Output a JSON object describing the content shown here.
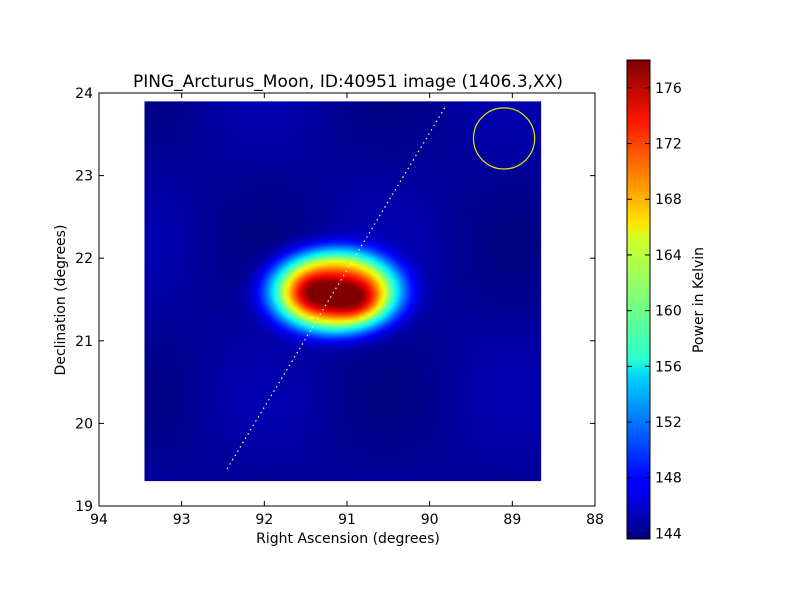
{
  "chart_data": {
    "type": "heatmap",
    "title": "PING_Arcturus_Moon, ID:40951 image (1406.3,XX)",
    "xlabel": "Right Ascension (degrees)",
    "ylabel": "Declination (degrees)",
    "xlim": [
      94,
      88
    ],
    "ylim": [
      19,
      24
    ],
    "x_ticks": [
      94,
      93,
      92,
      91,
      90,
      89,
      88
    ],
    "y_ticks": [
      19,
      20,
      21,
      22,
      23,
      24
    ],
    "x_tick_labels": [
      "94",
      "93",
      "92",
      "91",
      "90",
      "89",
      "88"
    ],
    "y_tick_labels": [
      "19",
      "20",
      "21",
      "22",
      "23",
      "24"
    ],
    "image_extent": {
      "ra": [
        93.45,
        88.65
      ],
      "dec": [
        19.3,
        23.9
      ]
    },
    "background_value": 144.5,
    "peak_value": 177.5,
    "hotspots": [
      {
        "ra": 91.38,
        "dec": 21.58,
        "value": 177.5
      },
      {
        "ra": 90.92,
        "dec": 21.52,
        "value": 177.0
      }
    ],
    "trajectory": {
      "from": {
        "ra": 92.45,
        "dec": 19.45
      },
      "to": {
        "ra": 89.8,
        "dec": 23.85
      },
      "color": "#ffff66"
    },
    "beam_circle": {
      "ra": 89.1,
      "dec": 23.45,
      "radius_deg": 0.37,
      "color": "#e6e600"
    },
    "colorbar": {
      "label": "Power in Kelvin",
      "range": [
        143.6,
        178.0
      ],
      "ticks": [
        144,
        148,
        152,
        156,
        160,
        164,
        168,
        172,
        176
      ],
      "tick_labels": [
        "144",
        "148",
        "152",
        "156",
        "160",
        "164",
        "168",
        "172",
        "176"
      ]
    }
  }
}
